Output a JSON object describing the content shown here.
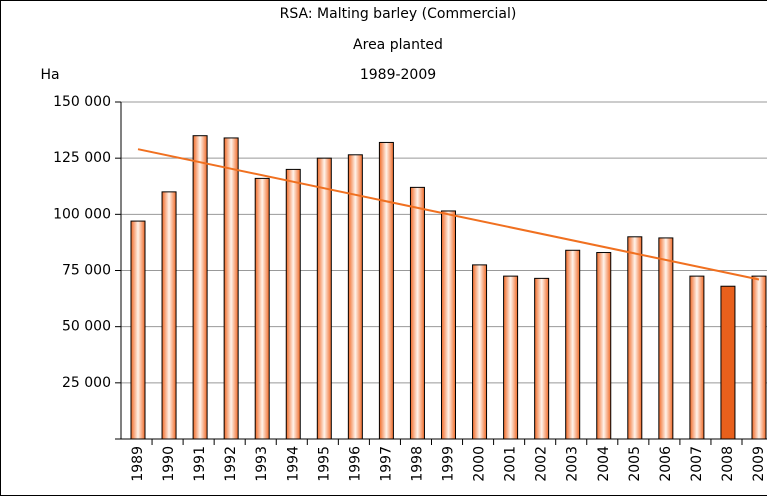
{
  "chart_data": {
    "type": "bar",
    "title": [
      "RSA: Malting barley (Commercial)",
      "Area planted",
      "1989-2009"
    ],
    "ylabel": "Ha",
    "categories": [
      "1989",
      "1990",
      "1991",
      "1992",
      "1993",
      "1994",
      "1995",
      "1996",
      "1997",
      "1998",
      "1999",
      "2000",
      "2001",
      "2002",
      "2003",
      "2004",
      "2005",
      "2006",
      "2007",
      "2008",
      "2009"
    ],
    "values": [
      97000,
      110000,
      135000,
      134000,
      116000,
      120000,
      125000,
      126500,
      132000,
      112000,
      101500,
      77500,
      72500,
      71500,
      84000,
      83000,
      90000,
      89500,
      72500,
      68000,
      72500
    ],
    "fill_styles": [
      "gradient",
      "gradient",
      "gradient",
      "gradient",
      "gradient",
      "gradient",
      "gradient",
      "gradient",
      "gradient",
      "gradient",
      "gradient",
      "gradient",
      "gradient",
      "gradient",
      "gradient",
      "gradient",
      "gradient",
      "gradient",
      "gradient",
      "solid",
      "gradient"
    ],
    "color": "#e8601c",
    "trendline": {
      "color": "#f07020",
      "start": 129000,
      "end": 71000
    },
    "ylim": [
      0,
      150000
    ],
    "yticks": [
      0,
      {
        "value": 25000,
        "label": "25 000"
      },
      {
        "value": 50000,
        "label": "50 000"
      },
      {
        "value": 75000,
        "label": "75 000"
      },
      {
        "value": 100000,
        "label": "100 000"
      },
      {
        "value": 125000,
        "label": "125 000"
      },
      {
        "value": 150000,
        "label": "150 000"
      }
    ],
    "grid": true
  }
}
